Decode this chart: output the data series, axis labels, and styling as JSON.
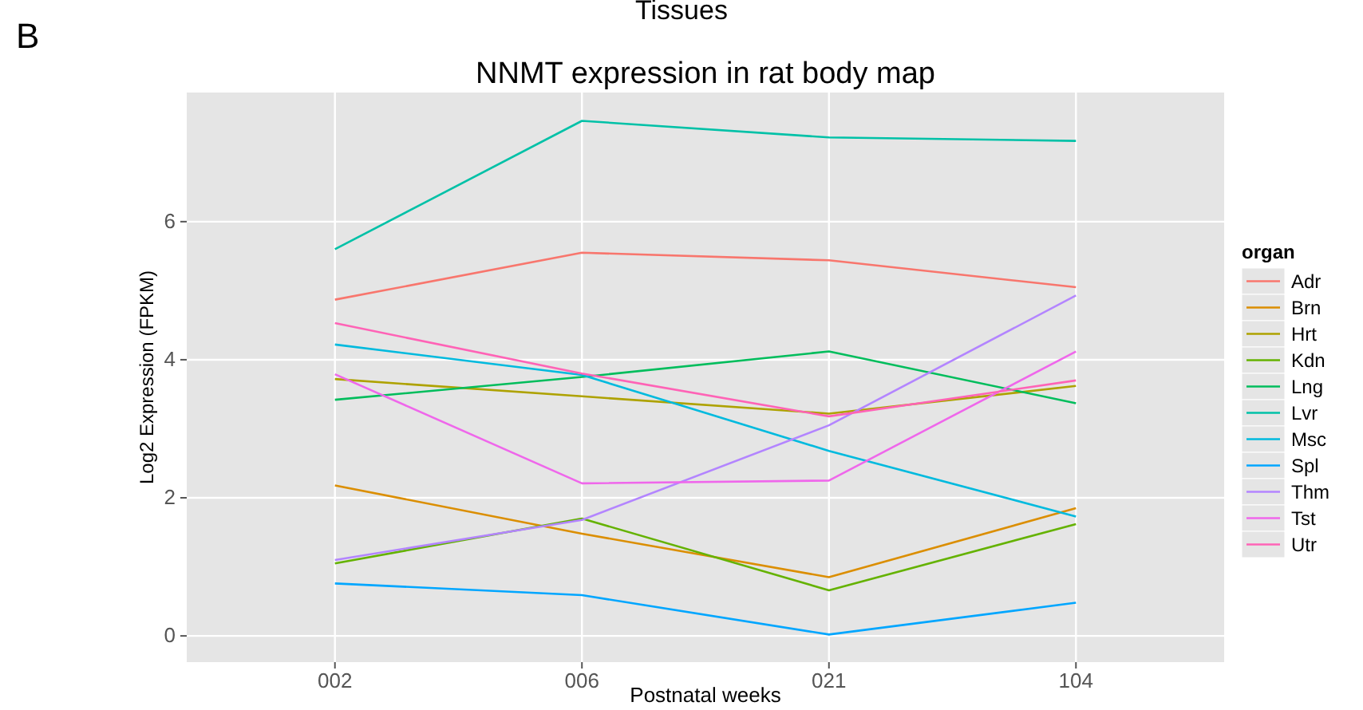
{
  "chart_data": {
    "type": "line",
    "title": "NNMT expression in rat body map",
    "xlabel": "Postnatal weeks",
    "ylabel": "Log2 Expression (FPKM)",
    "legend_title": "organ",
    "legend": "right",
    "grid": true,
    "annotations": [
      "B",
      "Tissues"
    ],
    "categories": [
      "002",
      "006",
      "021",
      "104"
    ],
    "ylim": [
      -0.38,
      7.87
    ],
    "yticks": [
      0,
      2,
      4,
      6
    ],
    "series": [
      {
        "name": "Adr",
        "color": "#f8766d",
        "values": [
          4.87,
          5.55,
          5.44,
          5.05
        ]
      },
      {
        "name": "Brn",
        "color": "#db8e00",
        "values": [
          2.18,
          1.48,
          0.85,
          1.85
        ]
      },
      {
        "name": "Hrt",
        "color": "#aea200",
        "values": [
          3.72,
          3.47,
          3.22,
          3.62
        ]
      },
      {
        "name": "Kdn",
        "color": "#64b200",
        "values": [
          1.05,
          1.7,
          0.66,
          1.62
        ]
      },
      {
        "name": "Lng",
        "color": "#00bd5c",
        "values": [
          3.42,
          3.75,
          4.12,
          3.37
        ]
      },
      {
        "name": "Lvr",
        "color": "#00c1a7",
        "values": [
          5.6,
          7.46,
          7.22,
          7.17
        ]
      },
      {
        "name": "Msc",
        "color": "#00bade",
        "values": [
          4.22,
          3.78,
          2.68,
          1.73
        ]
      },
      {
        "name": "Spl",
        "color": "#00a6ff",
        "values": [
          0.76,
          0.59,
          0.02,
          0.48
        ]
      },
      {
        "name": "Thm",
        "color": "#b385ff",
        "values": [
          1.1,
          1.68,
          3.05,
          4.93
        ]
      },
      {
        "name": "Tst",
        "color": "#ef67eb",
        "values": [
          3.79,
          2.21,
          2.25,
          4.12
        ]
      },
      {
        "name": "Utr",
        "color": "#ff63b6",
        "values": [
          4.53,
          3.8,
          3.18,
          3.7
        ]
      }
    ]
  }
}
